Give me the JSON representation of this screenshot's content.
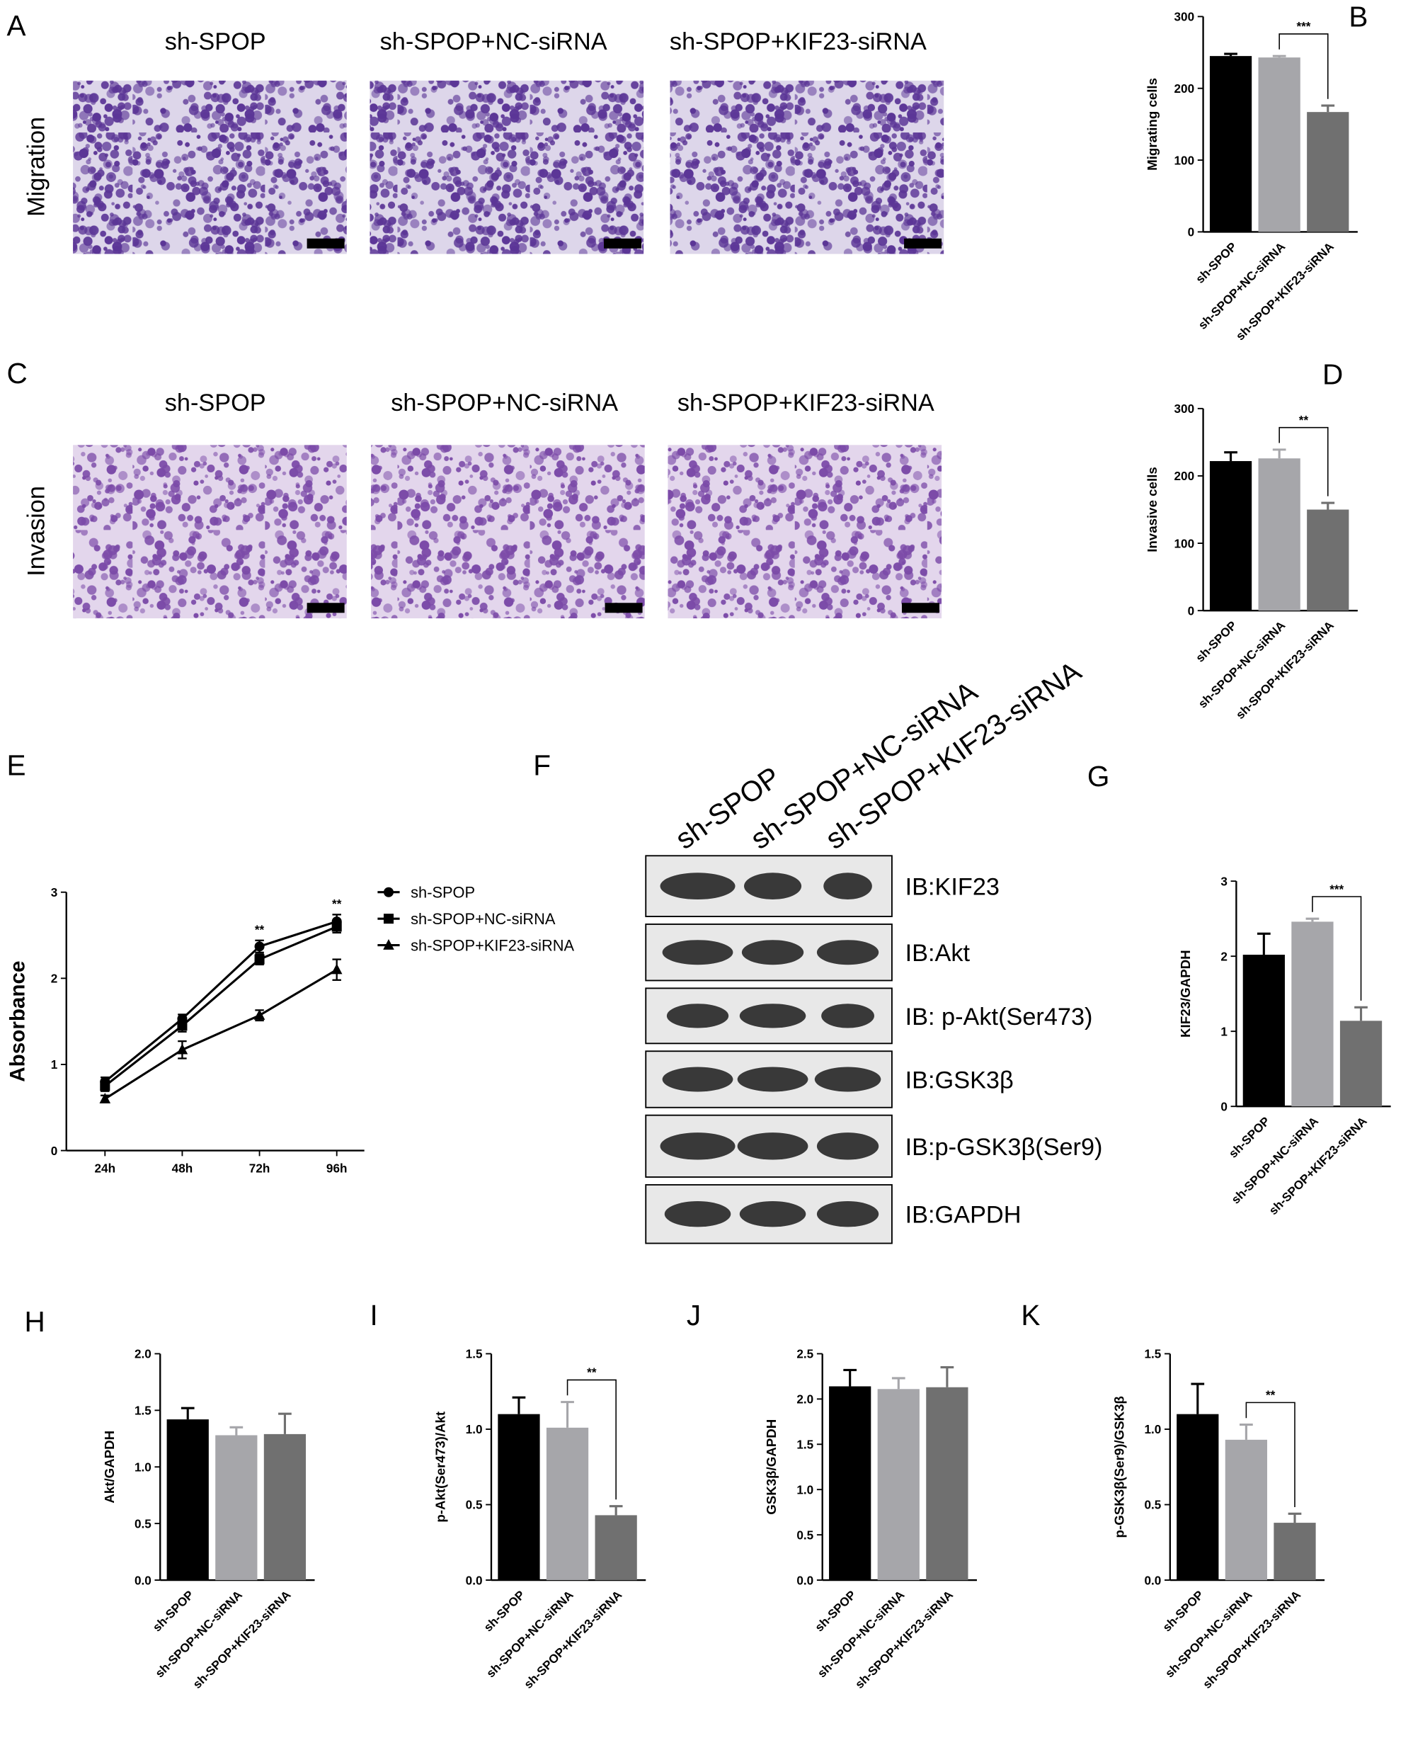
{
  "panel_labels": [
    "A",
    "B",
    "C",
    "D",
    "E",
    "F",
    "G",
    "H",
    "I",
    "J",
    "K"
  ],
  "micrographs": {
    "rows": [
      {
        "label": "Migration",
        "titles": [
          "sh-SPOP",
          "sh-SPOP+NC-siRNA",
          "sh-SPOP+KIF23-siRNA"
        ]
      },
      {
        "label": "Invasion",
        "titles": [
          "sh-SPOP",
          "sh-SPOP+NC-siRNA",
          "sh-SPOP+KIF23-siRNA"
        ]
      }
    ]
  },
  "blot": {
    "lanes": [
      "sh-SPOP",
      "sh-SPOP+NC-siRNA",
      "sh-SPOP+KIF23-siRNA"
    ],
    "rows": [
      "IB:KIF23",
      "IB:Akt",
      "IB: p-Akt(Ser473)",
      "IB:GSK3β",
      "IB:p-GSK3β(Ser9)",
      "IB:GAPDH"
    ]
  },
  "chart_data": [
    {
      "type": "bar",
      "y_label": "Migrating cells",
      "categories": [
        "sh-SPOP",
        "sh-SPOP+NC-siRNA",
        "sh-SPOP+KIF23-siRNA"
      ],
      "values": [
        245,
        243,
        167
      ],
      "errors": [
        3,
        2,
        9
      ],
      "colors": [
        "#000000",
        "#a6a6aa",
        "#707070"
      ],
      "ylim": [
        0,
        300
      ],
      "yticks": [
        0,
        100,
        200,
        300
      ],
      "annotation": "***"
    },
    {
      "type": "bar",
      "y_label": "Invasive cells",
      "categories": [
        "sh-SPOP",
        "sh-SPOP+NC-siRNA",
        "sh-SPOP+KIF23-siRNA"
      ],
      "values": [
        222,
        226,
        150
      ],
      "errors": [
        13,
        13,
        10
      ],
      "colors": [
        "#000000",
        "#a6a6aa",
        "#707070"
      ],
      "ylim": [
        0,
        300
      ],
      "yticks": [
        0,
        100,
        200,
        300
      ],
      "annotation": "**"
    },
    {
      "type": "line",
      "y_label": "Absorbance",
      "categories": [
        "24h",
        "48h",
        "72h",
        "96h"
      ],
      "ylim": [
        0,
        3
      ],
      "yticks": [
        0,
        1,
        2,
        3
      ],
      "series": [
        {
          "name": "sh-SPOP",
          "color": "#000000",
          "marker": "circle",
          "values": [
            0.8,
            1.53,
            2.37,
            2.66
          ],
          "errors": [
            0.05,
            0.05,
            0.07,
            0.08
          ]
        },
        {
          "name": "sh-SPOP+NC-siRNA",
          "color": "#000000",
          "marker": "square",
          "values": [
            0.75,
            1.45,
            2.22,
            2.6
          ],
          "errors": [
            0.06,
            0.07,
            0.06,
            0.07
          ]
        },
        {
          "name": "sh-SPOP+KIF23-siRNA",
          "color": "#000000",
          "marker": "triangle",
          "values": [
            0.6,
            1.17,
            1.57,
            2.1
          ],
          "errors": [
            0.04,
            0.1,
            0.06,
            0.12
          ]
        }
      ],
      "annotations": [
        null,
        null,
        "**",
        "**"
      ]
    },
    {
      "type": "bar",
      "y_label": "KIF23/GAPDH",
      "categories": [
        "sh-SPOP",
        "sh-SPOP+NC-siRNA",
        "sh-SPOP+KIF23-siRNA"
      ],
      "values": [
        2.02,
        2.46,
        1.14
      ],
      "errors": [
        0.28,
        0.04,
        0.18
      ],
      "colors": [
        "#000000",
        "#a6a6aa",
        "#707070"
      ],
      "ylim": [
        0,
        3
      ],
      "yticks": [
        0,
        1,
        2,
        3
      ],
      "annotation": "***"
    },
    {
      "type": "bar",
      "y_label": "Akt/GAPDH",
      "categories": [
        "sh-SPOP",
        "sh-SPOP+NC-siRNA",
        "sh-SPOP+KIF23-siRNA"
      ],
      "values": [
        1.42,
        1.28,
        1.29
      ],
      "errors": [
        0.1,
        0.07,
        0.18
      ],
      "colors": [
        "#000000",
        "#a6a6aa",
        "#707070"
      ],
      "ylim": [
        0,
        2
      ],
      "yticks": [
        {
          "value": 0,
          "label": "0.0"
        },
        0.5,
        {
          "value": 1,
          "label": "1.0"
        },
        1.5,
        {
          "value": 2,
          "label": "2.0"
        }
      ]
    },
    {
      "type": "bar",
      "y_label": "p-Akt(Ser473)/Akt",
      "categories": [
        "sh-SPOP",
        "sh-SPOP+NC-siRNA",
        "sh-SPOP+KIF23-siRNA"
      ],
      "values": [
        1.1,
        1.01,
        0.43
      ],
      "errors": [
        0.11,
        0.17,
        0.06
      ],
      "colors": [
        "#000000",
        "#a6a6aa",
        "#707070"
      ],
      "ylim": [
        0,
        1.5
      ],
      "yticks": [
        {
          "value": 0,
          "label": "0.0"
        },
        0.5,
        {
          "value": 1,
          "label": "1.0"
        },
        1.5
      ],
      "annotation": "**"
    },
    {
      "type": "bar",
      "y_label": "GSK3β/GAPDH",
      "categories": [
        "sh-SPOP",
        "sh-SPOP+NC-siRNA",
        "sh-SPOP+KIF23-siRNA"
      ],
      "values": [
        2.14,
        2.11,
        2.13
      ],
      "errors": [
        0.18,
        0.12,
        0.22
      ],
      "colors": [
        "#000000",
        "#a6a6aa",
        "#707070"
      ],
      "ylim": [
        0,
        2.5
      ],
      "yticks": [
        {
          "value": 0,
          "label": "0.0"
        },
        0.5,
        {
          "value": 1,
          "label": "1.0"
        },
        1.5,
        {
          "value": 2,
          "label": "2.0"
        },
        2.5
      ]
    },
    {
      "type": "bar",
      "y_label": "p-GSK3β(Ser9)/GSK3β",
      "categories": [
        "sh-SPOP",
        "sh-SPOP+NC-siRNA",
        "sh-SPOP+KIF23-siRNA"
      ],
      "values": [
        1.1,
        0.93,
        0.38
      ],
      "errors": [
        0.2,
        0.1,
        0.06
      ],
      "colors": [
        "#000000",
        "#a6a6aa",
        "#707070"
      ],
      "ylim": [
        0,
        1.5
      ],
      "yticks": [
        {
          "value": 0,
          "label": "0.0"
        },
        0.5,
        {
          "value": 1,
          "label": "1.0"
        },
        1.5
      ],
      "annotation": "**"
    }
  ]
}
